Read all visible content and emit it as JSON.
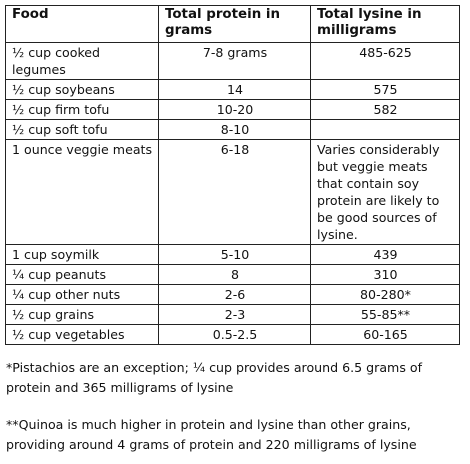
{
  "table": {
    "headers": [
      "Food",
      "Total protein in grams",
      "Total lysine in milligrams"
    ],
    "rows": [
      {
        "food": "½ cup cooked legumes",
        "protein": "7-8 grams",
        "lysine": "485-625"
      },
      {
        "food": "½ cup soybeans",
        "protein": "14",
        "lysine": "575"
      },
      {
        "food": "½ cup firm tofu",
        "protein": "10-20",
        "lysine": "582"
      },
      {
        "food": "½ cup soft tofu",
        "protein": "8-10",
        "lysine": ""
      },
      {
        "food": "1 ounce veggie meats",
        "protein": "6-18",
        "lysine": "Varies considerably but veggie meats that contain soy protein are likely to be good sources of lysine."
      },
      {
        "food": "1 cup soymilk",
        "protein": "5-10",
        "lysine": "439"
      },
      {
        "food": "¼ cup peanuts",
        "protein": "8",
        "lysine": "310"
      },
      {
        "food": "¼ cup other nuts",
        "protein": "2-6",
        "lysine": "80-280*"
      },
      {
        "food": "½ cup grains",
        "protein": "2-3",
        "lysine": "55-85**"
      },
      {
        "food": "½ cup vegetables",
        "protein": "0.5-2.5",
        "lysine": "60-165"
      }
    ]
  },
  "notes": {
    "pistachios": "*Pistachios are an exception; ¼ cup provides around 6.5 grams of protein and 365 milligrams of lysine",
    "quinoa": "**Quinoa is much higher in protein and lysine than other grains, providing around 4 grams of protein and 220 milligrams of lysine"
  }
}
